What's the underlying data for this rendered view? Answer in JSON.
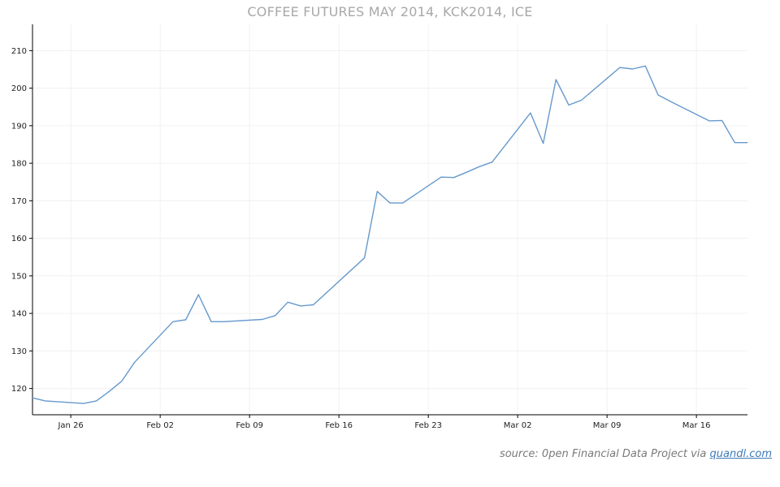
{
  "chart_data": {
    "type": "line",
    "title": "COFFEE FUTURES MAY 2014, KCK2014, ICE",
    "xlabel": "",
    "ylabel": "",
    "x_ticks": [
      "Jan 26",
      "Feb 02",
      "Feb 09",
      "Feb 16",
      "Feb 23",
      "Mar 02",
      "Mar 09",
      "Mar 16"
    ],
    "x_tick_dates": [
      "2014-01-26",
      "2014-02-02",
      "2014-02-09",
      "2014-02-16",
      "2014-02-23",
      "2014-03-02",
      "2014-03-09",
      "2014-03-16"
    ],
    "y_ticks": [
      120,
      130,
      140,
      150,
      160,
      170,
      180,
      190,
      200,
      210
    ],
    "xlim": [
      "2014-01-23",
      "2014-03-20"
    ],
    "ylim": [
      113,
      217
    ],
    "grid": true,
    "line_color": "#6699cc",
    "series": [
      {
        "x": [
          "2014-01-23",
          "2014-01-24",
          "2014-01-27",
          "2014-01-28",
          "2014-01-29",
          "2014-01-30",
          "2014-01-31",
          "2014-02-03",
          "2014-02-04",
          "2014-02-05",
          "2014-02-06",
          "2014-02-07",
          "2014-02-10",
          "2014-02-11",
          "2014-02-12",
          "2014-02-13",
          "2014-02-14",
          "2014-02-18",
          "2014-02-19",
          "2014-02-20",
          "2014-02-21",
          "2014-02-24",
          "2014-02-25",
          "2014-02-26",
          "2014-02-27",
          "2014-02-28",
          "2014-03-03",
          "2014-03-04",
          "2014-03-05",
          "2014-03-06",
          "2014-03-07",
          "2014-03-10",
          "2014-03-11",
          "2014-03-12",
          "2014-03-13",
          "2014-03-14",
          "2014-03-17",
          "2014-03-18",
          "2014-03-19",
          "2014-03-20"
        ],
        "values": [
          117.5,
          116.7,
          116.0,
          116.7,
          119.2,
          122.0,
          127.0,
          137.8,
          138.3,
          145.0,
          137.8,
          137.8,
          138.4,
          139.4,
          143.0,
          142.0,
          142.3,
          154.8,
          172.5,
          169.4,
          169.4,
          176.3,
          176.2,
          177.6,
          179.1,
          180.3,
          193.4,
          185.3,
          202.3,
          195.5,
          196.8,
          205.5,
          205.1,
          205.9,
          198.2,
          196.4,
          191.3,
          191.4,
          185.5,
          185.5
        ]
      }
    ]
  },
  "footer": {
    "source_prefix": "source: 0pen Financial Data Project via ",
    "source_link": "quandl.com"
  }
}
